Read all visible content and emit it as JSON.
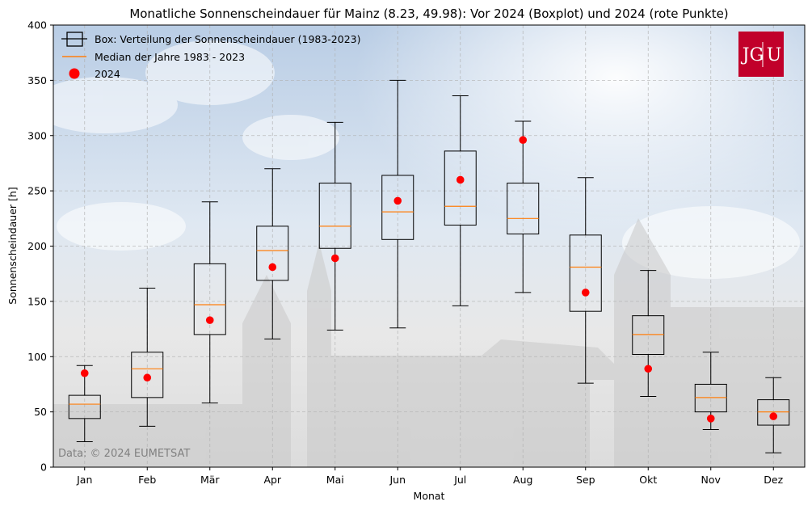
{
  "chart_data": {
    "type": "boxplot",
    "title": "Monatliche Sonnenscheindauer für Mainz (8.23, 49.98): Vor 2024 (Boxplot) und 2024 (rote Punkte)",
    "xlabel": "Monat",
    "ylabel": "Sonnenscheindauer [h]",
    "ylim": [
      0,
      400
    ],
    "yticks": [
      0,
      50,
      100,
      150,
      200,
      250,
      300,
      350,
      400
    ],
    "grid": true,
    "legend_position": "top-left",
    "categories": [
      "Jan",
      "Feb",
      "Mär",
      "Apr",
      "Mai",
      "Jun",
      "Jul",
      "Aug",
      "Sep",
      "Okt",
      "Nov",
      "Dez"
    ],
    "series": [
      {
        "name": "Box: Verteilung der Sonnenscheindauer (1983-2023)",
        "boxes": [
          {
            "whisker_low": 23,
            "q1": 44,
            "median": 57,
            "q3": 65,
            "whisker_high": 92
          },
          {
            "whisker_low": 37,
            "q1": 63,
            "median": 89,
            "q3": 104,
            "whisker_high": 162
          },
          {
            "whisker_low": 58,
            "q1": 120,
            "median": 147,
            "q3": 184,
            "whisker_high": 240
          },
          {
            "whisker_low": 116,
            "q1": 169,
            "median": 196,
            "q3": 218,
            "whisker_high": 270
          },
          {
            "whisker_low": 124,
            "q1": 198,
            "median": 218,
            "q3": 257,
            "whisker_high": 312
          },
          {
            "whisker_low": 126,
            "q1": 206,
            "median": 231,
            "q3": 264,
            "whisker_high": 350
          },
          {
            "whisker_low": 146,
            "q1": 219,
            "median": 236,
            "q3": 286,
            "whisker_high": 336
          },
          {
            "whisker_low": 158,
            "q1": 211,
            "median": 225,
            "q3": 257,
            "whisker_high": 313
          },
          {
            "whisker_low": 76,
            "q1": 141,
            "median": 181,
            "q3": 210,
            "whisker_high": 262
          },
          {
            "whisker_low": 64,
            "q1": 102,
            "median": 120,
            "q3": 137,
            "whisker_high": 178
          },
          {
            "whisker_low": 34,
            "q1": 50,
            "median": 63,
            "q3": 75,
            "whisker_high": 104
          },
          {
            "whisker_low": 13,
            "q1": 38,
            "median": 50,
            "q3": 61,
            "whisker_high": 81
          }
        ]
      },
      {
        "name": "Median der Jahre 1983 - 2023",
        "values": [
          57,
          89,
          147,
          196,
          218,
          231,
          236,
          225,
          181,
          120,
          63,
          50
        ]
      },
      {
        "name": "2024",
        "values": [
          85,
          81,
          133,
          181,
          189,
          241,
          260,
          296,
          158,
          89,
          44,
          46
        ]
      }
    ],
    "annotations": [
      "Data: © 2024 EUMETSAT"
    ],
    "colors": {
      "box": "#000000",
      "median": "#ff7f0e",
      "points_2024": "#ff0000",
      "logo_bg": "#c1002a"
    }
  },
  "logo": {
    "left": "JG",
    "right": "U"
  }
}
